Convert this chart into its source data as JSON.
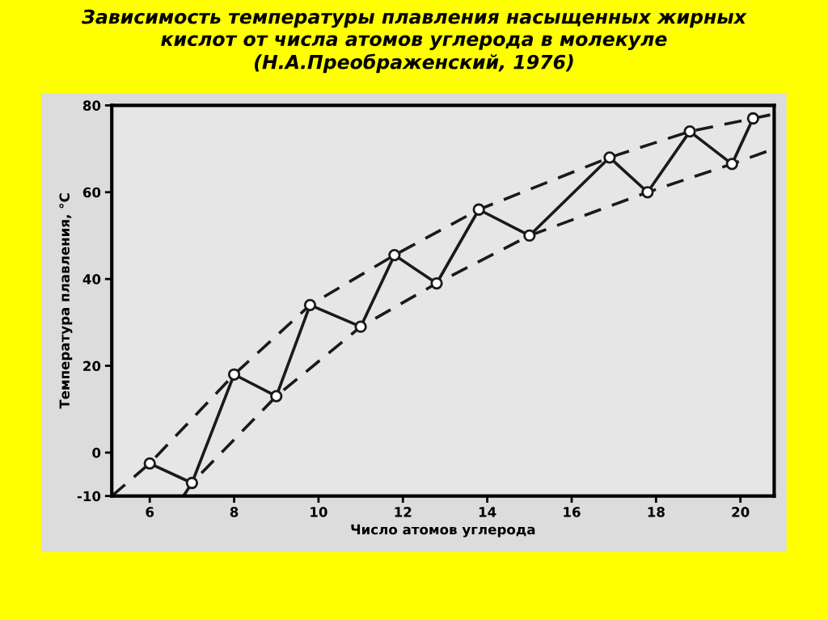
{
  "chart_data": {
    "type": "line",
    "title": "Зависимость температуры плавления насыщенных жирных\nкислот от числа атомов углерода в молекуле\n(Н.А.Преображенский, 1976)",
    "xlabel": "Число атомов углерода",
    "ylabel": "Температура плавления, °С",
    "xlim": [
      5.1,
      20.8
    ],
    "xticks": [
      6,
      8,
      10,
      12,
      14,
      16,
      18,
      20
    ],
    "ylim": [
      -10,
      80
    ],
    "yticks": [
      -10,
      0,
      20,
      40,
      60,
      80
    ],
    "series": [
      {
        "color": "#1a1a1a",
        "marker": "circle",
        "line_style": "solid",
        "x": [
          6,
          7,
          8,
          9,
          9.8,
          11,
          11.8,
          12.8,
          13.8,
          15,
          16.9,
          17.8,
          18.8,
          19.8,
          20.3
        ],
        "values": [
          -2.5,
          -7,
          18,
          13,
          34,
          29,
          45.5,
          39,
          56,
          50,
          68,
          60,
          74,
          66.5,
          77
        ]
      },
      {
        "color": "#1a1a1a",
        "marker": "none",
        "line_style": "dashed",
        "x": [
          5.1,
          6,
          8,
          9.8,
          11.8,
          13.8,
          16.9,
          18.8,
          20.3,
          20.8
        ],
        "values": [
          -10,
          -2.5,
          18,
          34,
          45.5,
          56,
          68,
          74,
          77,
          78
        ]
      },
      {
        "color": "#1a1a1a",
        "marker": "none",
        "line_style": "dashed",
        "x": [
          6.8,
          7,
          9,
          11,
          12.8,
          15,
          17.8,
          19.8,
          20.8
        ],
        "values": [
          -10,
          -7,
          13,
          29,
          39,
          50,
          60,
          66.5,
          70
        ]
      }
    ]
  }
}
